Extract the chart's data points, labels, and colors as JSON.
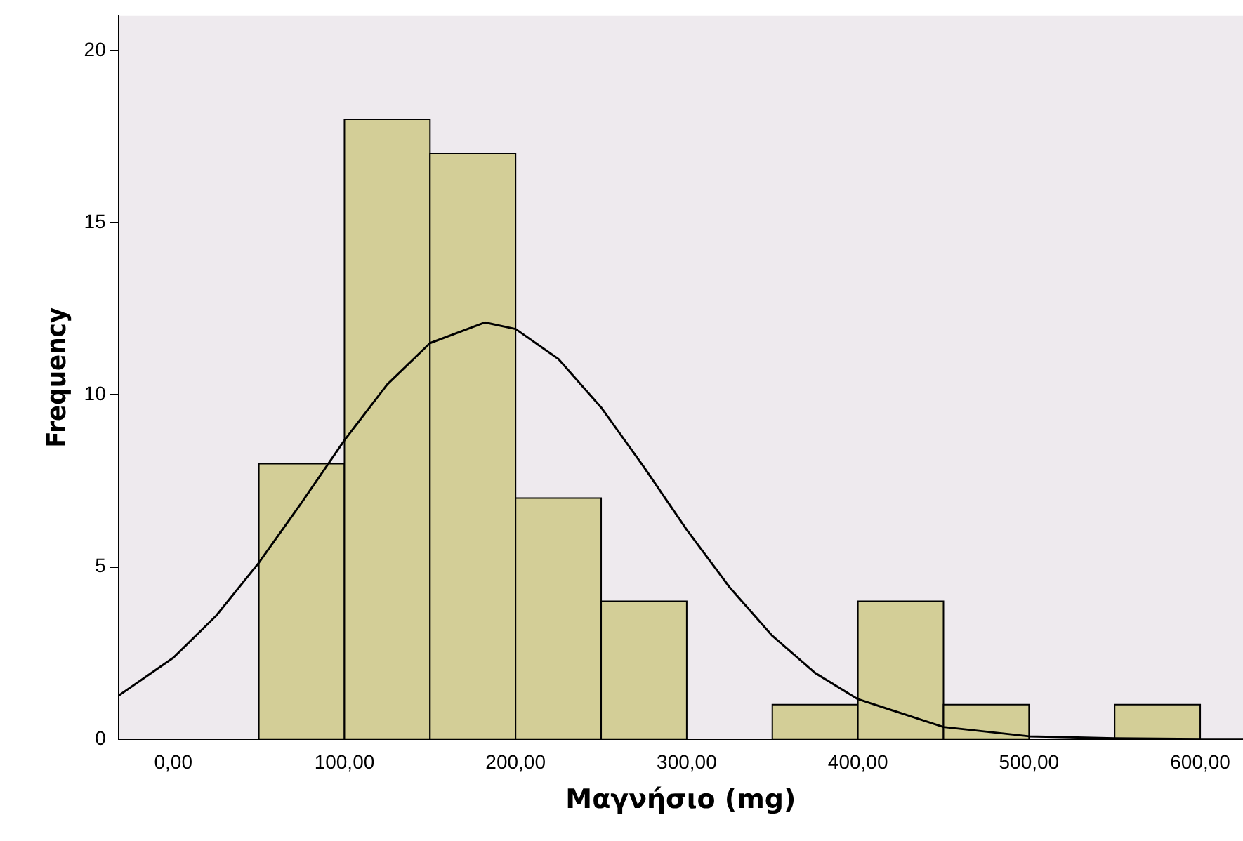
{
  "chart_data": {
    "type": "histogram",
    "xlabel": "Μαγνήσιο (mg)",
    "ylabel": "Frequency",
    "bins": [
      50,
      100,
      150,
      200,
      250,
      300,
      350,
      400,
      450,
      500,
      550,
      600
    ],
    "values": [
      8,
      18,
      17,
      7,
      4,
      0,
      1,
      4,
      1,
      0,
      1
    ],
    "color": "#d3ce97",
    "series": [
      {
        "type": "line",
        "color": "#000000",
        "x": [
          -32,
          0,
          25,
          50,
          75,
          100,
          125,
          150,
          182,
          200,
          225,
          250,
          275,
          300,
          325,
          350,
          375,
          400,
          450,
          500,
          550,
          600,
          625
        ],
        "values": [
          1.26,
          2.36,
          3.58,
          5.12,
          6.87,
          8.68,
          10.3,
          11.5,
          12.1,
          11.91,
          11.04,
          9.63,
          7.9,
          6.08,
          4.41,
          3.0,
          1.92,
          1.16,
          0.35,
          0.08,
          0.02,
          0,
          0
        ]
      }
    ],
    "marker": "none",
    "xlim": [
      -32,
      625
    ],
    "xticks": [
      {
        "value": 0,
        "label": "0,00"
      },
      {
        "value": 100,
        "label": "100,00"
      },
      {
        "value": 200,
        "label": "200,00"
      },
      {
        "value": 300,
        "label": "300,00"
      },
      {
        "value": 400,
        "label": "400,00"
      },
      {
        "value": 500,
        "label": "500,00"
      },
      {
        "value": 600,
        "label": "600,00"
      }
    ],
    "ylim": [
      0,
      21
    ],
    "yticks": [
      0,
      5,
      10,
      15,
      20
    ],
    "grid": false,
    "legend": false
  }
}
